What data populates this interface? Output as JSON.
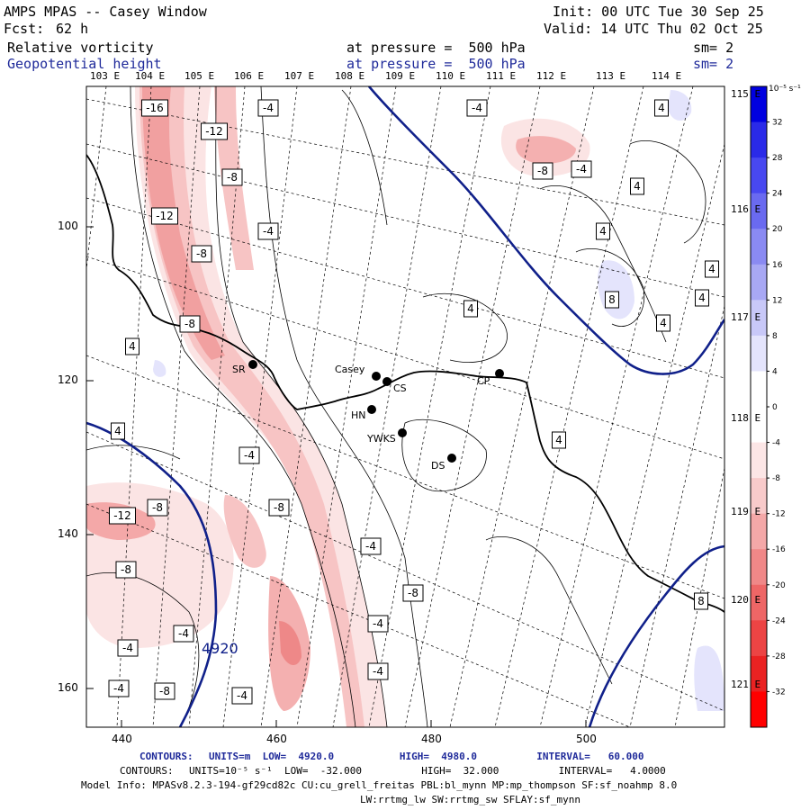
{
  "header": {
    "title": "AMPS MPAS -- Casey Window",
    "fcst_label": "Fcst:",
    "fcst_value": "62 h",
    "init": "Init: 00 UTC Tue 30 Sep 25",
    "valid": "Valid: 14 UTC Thu 02 Oct 25",
    "field1": {
      "name": "Relative vorticity",
      "pressure": "at pressure =  500 hPa",
      "smooth": "sm= 2"
    },
    "field2": {
      "name": "Geopotential height",
      "pressure": "at pressure =  500 hPa",
      "smooth": "sm= 2"
    }
  },
  "colors": {
    "height_contour": "#10208a",
    "positive_vorticity": "#2d46e0",
    "negative_vorticity": "#e03030"
  },
  "map": {
    "top_lon_labels": [
      "103 E",
      "104 E",
      "105 E",
      "106 E",
      "107 E",
      "108 E",
      "109 E",
      "110 E",
      "111 E",
      "112 E",
      "113 E",
      "114 E"
    ],
    "right_lon_labels": [
      "115 E",
      "116 E",
      "117 E",
      "118 E",
      "119 E",
      "120 E",
      "121 E"
    ],
    "y_ticks": [
      "100",
      "120",
      "140",
      "160"
    ],
    "x_ticks": [
      "440",
      "460",
      "480",
      "500"
    ],
    "height_label": "4920",
    "stations": [
      {
        "name": "SR"
      },
      {
        "name": "Casey"
      },
      {
        "name": "CS"
      },
      {
        "name": "CP"
      },
      {
        "name": "HN"
      },
      {
        "name": "YWKS"
      },
      {
        "name": "DS"
      }
    ],
    "contour_labels": [
      {
        "text": "-16"
      },
      {
        "text": "-12"
      },
      {
        "text": "-4"
      },
      {
        "text": "-4"
      },
      {
        "text": "4"
      },
      {
        "text": "-8"
      },
      {
        "text": "-8"
      },
      {
        "text": "-4"
      },
      {
        "text": "4"
      },
      {
        "text": "-12"
      },
      {
        "text": "-4"
      },
      {
        "text": "4"
      },
      {
        "text": "-8"
      },
      {
        "text": "4"
      },
      {
        "text": "8"
      },
      {
        "text": "4"
      },
      {
        "text": "-8"
      },
      {
        "text": "4"
      },
      {
        "text": "4"
      },
      {
        "text": "4"
      },
      {
        "text": "4"
      },
      {
        "text": "-4"
      },
      {
        "text": "-8"
      },
      {
        "text": "-12"
      },
      {
        "text": "4"
      },
      {
        "text": "-8"
      },
      {
        "text": "-8"
      },
      {
        "text": "-4"
      },
      {
        "text": "-8"
      },
      {
        "text": "-4"
      },
      {
        "text": "-4"
      },
      {
        "text": "-4"
      },
      {
        "text": "-4"
      },
      {
        "text": "-4"
      },
      {
        "text": "-8"
      },
      {
        "text": "-4"
      },
      {
        "text": "8"
      }
    ]
  },
  "colorbar": {
    "units": "10⁻⁵ s⁻¹",
    "labels": [
      "32",
      "28",
      "24",
      "20",
      "16",
      "12",
      "8",
      "4",
      "0",
      "-4",
      "-8",
      "-12",
      "-16",
      "-20",
      "-24",
      "-28",
      "-32"
    ],
    "colors": [
      "#0000e0",
      "#2a2ae8",
      "#4848f0",
      "#6a6af0",
      "#8a8af2",
      "#a8a8f4",
      "#c8c8f8",
      "#e4e4fc",
      "#ffffff",
      "#ffffff",
      "#fce6e6",
      "#f8caca",
      "#f4a8a8",
      "#f08888",
      "#ee6666",
      "#ec4444",
      "#ea2222",
      "#ff0000"
    ]
  },
  "footer": {
    "line1_label": "CONTOURS:",
    "line1": "UNITS=m  LOW=  4920.0           HIGH=  4980.0          INTERVAL=   60.000",
    "line2_label": "CONTOURS:",
    "line2": "UNITS=10⁻⁵ s⁻¹  LOW=  -32.000          HIGH=  32.000          INTERVAL=   4.0000",
    "line3": "Model Info: MPASv8.2.3-194-gf29cd82c CU:cu_grell_freitas PBL:bl_mynn MP:mp_thompson SF:sf_noahmp 8.0",
    "line4": "LW:rrtmg_lw SW:rrtmg_sw SFLAY:sf_mynn"
  }
}
